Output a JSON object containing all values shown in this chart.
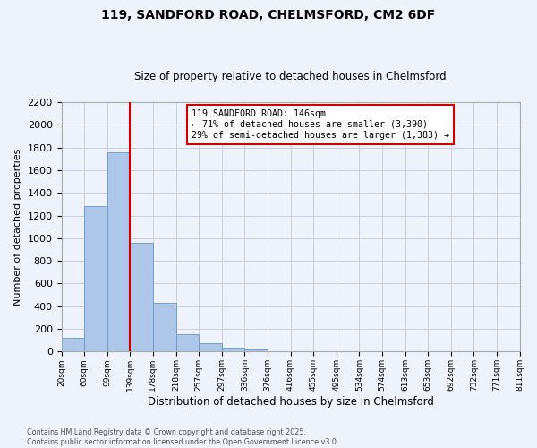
{
  "title": "119, SANDFORD ROAD, CHELMSFORD, CM2 6DF",
  "subtitle": "Size of property relative to detached houses in Chelmsford",
  "bar_values": [
    120,
    1280,
    1760,
    960,
    430,
    155,
    75,
    35,
    20,
    0,
    0,
    0,
    0,
    0,
    0,
    0,
    0,
    0,
    0,
    0
  ],
  "bin_labels": [
    "20sqm",
    "60sqm",
    "99sqm",
    "139sqm",
    "178sqm",
    "218sqm",
    "257sqm",
    "297sqm",
    "336sqm",
    "376sqm",
    "416sqm",
    "455sqm",
    "495sqm",
    "534sqm",
    "574sqm",
    "613sqm",
    "653sqm",
    "692sqm",
    "732sqm",
    "771sqm",
    "811sqm"
  ],
  "bar_color": "#aec6e8",
  "bar_edge_color": "#6699cc",
  "ylabel": "Number of detached properties",
  "xlabel": "Distribution of detached houses by size in Chelmsford",
  "ylim": [
    0,
    2200
  ],
  "yticks": [
    0,
    200,
    400,
    600,
    800,
    1000,
    1200,
    1400,
    1600,
    1800,
    2000,
    2200
  ],
  "vline_x": 3.0,
  "vline_color": "#cc0000",
  "annotation_title": "119 SANDFORD ROAD: 146sqm",
  "annotation_line2": "← 71% of detached houses are smaller (3,390)",
  "annotation_line3": "29% of semi-detached houses are larger (1,383) →",
  "annotation_box_color": "#cc0000",
  "annotation_box_fill": "#ffffff",
  "footer_line1": "Contains HM Land Registry data © Crown copyright and database right 2025.",
  "footer_line2": "Contains public sector information licensed under the Open Government Licence v3.0.",
  "bg_color": "#eef2fa",
  "grid_color": "#c8d0e0"
}
